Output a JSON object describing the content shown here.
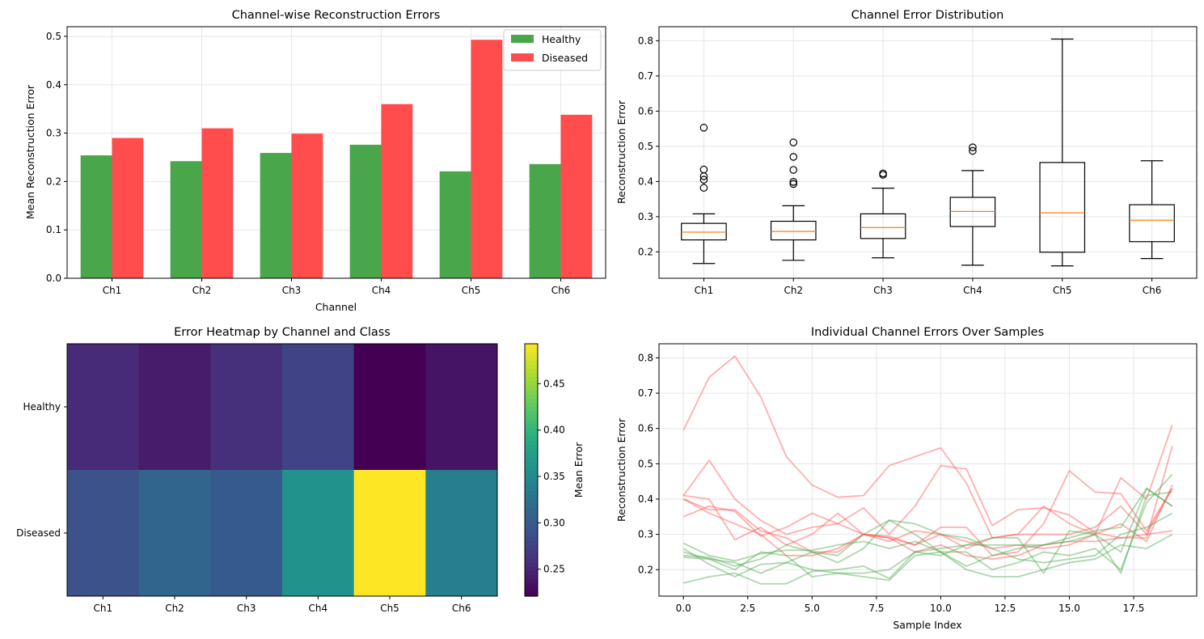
{
  "chart_data": [
    {
      "type": "bar",
      "title": "Channel-wise Reconstruction Errors",
      "xlabel": "Channel",
      "ylabel": "Mean Reconstruction Error",
      "categories": [
        "Ch1",
        "Ch2",
        "Ch3",
        "Ch4",
        "Ch5",
        "Ch6"
      ],
      "ylim": [
        0,
        0.52
      ],
      "yticks": [
        "0.0",
        "0.1",
        "0.2",
        "0.3",
        "0.4",
        "0.5"
      ],
      "grid": true,
      "legend_position": "top-right",
      "series": [
        {
          "name": "Healthy",
          "color": "#4aa64a",
          "values": [
            0.254,
            0.242,
            0.259,
            0.276,
            0.221,
            0.236
          ]
        },
        {
          "name": "Diseased",
          "color": "#ff4d4d",
          "values": [
            0.29,
            0.31,
            0.299,
            0.36,
            0.493,
            0.338
          ]
        }
      ]
    },
    {
      "type": "box",
      "title": "Channel Error Distribution",
      "xlabel": "",
      "ylabel": "Reconstruction Error",
      "categories": [
        "Ch1",
        "Ch2",
        "Ch3",
        "Ch4",
        "Ch5",
        "Ch6"
      ],
      "ylim": [
        0.125,
        0.84
      ],
      "yticks": [
        "0.2",
        "0.3",
        "0.4",
        "0.5",
        "0.6",
        "0.7",
        "0.8"
      ],
      "grid": true,
      "boxes": [
        {
          "whislo": 0.167,
          "q1": 0.234,
          "med": 0.256,
          "q3": 0.281,
          "whishi": 0.308,
          "fliers": [
            0.553,
            0.434,
            0.415,
            0.405,
            0.382
          ]
        },
        {
          "whislo": 0.176,
          "q1": 0.234,
          "med": 0.258,
          "q3": 0.287,
          "whishi": 0.331,
          "fliers": [
            0.511,
            0.47,
            0.433,
            0.399,
            0.393
          ]
        },
        {
          "whislo": 0.183,
          "q1": 0.238,
          "med": 0.269,
          "q3": 0.308,
          "whishi": 0.381,
          "fliers": [
            0.423,
            0.419
          ]
        },
        {
          "whislo": 0.162,
          "q1": 0.272,
          "med": 0.315,
          "q3": 0.355,
          "whishi": 0.431,
          "fliers": [
            0.497,
            0.487
          ]
        },
        {
          "whislo": 0.16,
          "q1": 0.199,
          "med": 0.311,
          "q3": 0.454,
          "whishi": 0.805,
          "fliers": []
        },
        {
          "whislo": 0.181,
          "q1": 0.229,
          "med": 0.29,
          "q3": 0.334,
          "whishi": 0.459,
          "fliers": []
        }
      ]
    },
    {
      "type": "heatmap",
      "title": "Error Heatmap by Channel and Class",
      "xlabel": "",
      "ylabel": "",
      "x_categories": [
        "Ch1",
        "Ch2",
        "Ch3",
        "Ch4",
        "Ch5",
        "Ch6"
      ],
      "y_categories": [
        "Healthy",
        "Diseased"
      ],
      "values": [
        [
          0.254,
          0.242,
          0.259,
          0.276,
          0.221,
          0.236
        ],
        [
          0.29,
          0.31,
          0.299,
          0.36,
          0.493,
          0.338
        ]
      ],
      "colormap": "viridis",
      "colorbar": {
        "label": "Mean Error",
        "range": [
          0.221,
          0.493
        ],
        "ticks": [
          "0.25",
          "0.30",
          "0.35",
          "0.40",
          "0.45"
        ],
        "tick_values": [
          0.25,
          0.3,
          0.35,
          0.4,
          0.45
        ]
      }
    },
    {
      "type": "line",
      "title": "Individual Channel Errors Over Samples",
      "xlabel": "Sample Index",
      "ylabel": "Reconstruction Error",
      "xlim": [
        -0.95,
        19.95
      ],
      "ylim": [
        0.125,
        0.84
      ],
      "xticks": [
        "0.0",
        "2.5",
        "5.0",
        "7.5",
        "10.0",
        "12.5",
        "15.0",
        "17.5"
      ],
      "yticks": [
        "0.2",
        "0.3",
        "0.4",
        "0.5",
        "0.6",
        "0.7",
        "0.8"
      ],
      "grid": true,
      "x": [
        0,
        1,
        2,
        3,
        4,
        5,
        6,
        7,
        8,
        9,
        10,
        11,
        12,
        13,
        14,
        15,
        16,
        17,
        18,
        19
      ],
      "series": [
        {
          "color": "#ff4d4d",
          "values": [
            0.595,
            0.745,
            0.805,
            0.69,
            0.52,
            0.44,
            0.405,
            0.41,
            0.495,
            0.52,
            0.545,
            0.445,
            0.29,
            0.3,
            0.38,
            0.33,
            0.3,
            0.46,
            0.4,
            0.61
          ]
        },
        {
          "color": "#ff4d4d",
          "values": [
            0.41,
            0.51,
            0.4,
            0.34,
            0.3,
            0.32,
            0.33,
            0.375,
            0.3,
            0.38,
            0.495,
            0.485,
            0.325,
            0.37,
            0.375,
            0.355,
            0.305,
            0.29,
            0.29,
            0.55
          ]
        },
        {
          "color": "#ff4d4d",
          "values": [
            0.41,
            0.4,
            0.285,
            0.32,
            0.27,
            0.3,
            0.36,
            0.3,
            0.295,
            0.27,
            0.32,
            0.32,
            0.24,
            0.25,
            0.33,
            0.48,
            0.42,
            0.415,
            0.31,
            0.43
          ]
        },
        {
          "color": "#ff4d4d",
          "values": [
            0.35,
            0.38,
            0.365,
            0.295,
            0.32,
            0.36,
            0.33,
            0.3,
            0.28,
            0.31,
            0.3,
            0.28,
            0.26,
            0.27,
            0.26,
            0.27,
            0.3,
            0.33,
            0.28,
            0.44
          ]
        },
        {
          "color": "#ff4d4d",
          "values": [
            0.4,
            0.36,
            0.33,
            0.3,
            0.24,
            0.24,
            0.26,
            0.3,
            0.29,
            0.25,
            0.27,
            0.24,
            0.23,
            0.24,
            0.27,
            0.28,
            0.28,
            0.29,
            0.3,
            0.31
          ]
        },
        {
          "color": "#ff4d4d",
          "values": [
            0.4,
            0.37,
            0.37,
            0.31,
            0.29,
            0.25,
            0.25,
            0.3,
            0.29,
            0.27,
            0.3,
            0.26,
            0.29,
            0.3,
            0.3,
            0.3,
            0.32,
            0.38,
            0.3,
            0.43
          ]
        },
        {
          "color": "#4aa64a",
          "values": [
            0.275,
            0.24,
            0.225,
            0.245,
            0.255,
            0.255,
            0.27,
            0.28,
            0.26,
            0.28,
            0.25,
            0.21,
            0.24,
            0.26,
            0.27,
            0.29,
            0.31,
            0.32,
            0.43,
            0.38
          ]
        },
        {
          "color": "#4aa64a",
          "values": [
            0.24,
            0.235,
            0.21,
            0.23,
            0.27,
            0.25,
            0.24,
            0.3,
            0.34,
            0.3,
            0.25,
            0.25,
            0.2,
            0.22,
            0.25,
            0.24,
            0.26,
            0.2,
            0.39,
            0.47
          ]
        },
        {
          "color": "#4aa64a",
          "values": [
            0.26,
            0.215,
            0.18,
            0.215,
            0.22,
            0.2,
            0.19,
            0.19,
            0.2,
            0.25,
            0.24,
            0.27,
            0.29,
            0.29,
            0.19,
            0.31,
            0.3,
            0.19,
            0.41,
            0.42
          ]
        },
        {
          "color": "#4aa64a",
          "values": [
            0.162,
            0.18,
            0.19,
            0.16,
            0.16,
            0.195,
            0.2,
            0.21,
            0.175,
            0.25,
            0.26,
            0.27,
            0.27,
            0.27,
            0.27,
            0.28,
            0.3,
            0.25,
            0.43,
            0.38
          ]
        },
        {
          "color": "#4aa64a",
          "values": [
            0.235,
            0.23,
            0.2,
            0.25,
            0.24,
            0.18,
            0.19,
            0.18,
            0.17,
            0.24,
            0.25,
            0.2,
            0.18,
            0.18,
            0.2,
            0.22,
            0.23,
            0.27,
            0.26,
            0.3
          ]
        },
        {
          "color": "#4aa64a",
          "values": [
            0.25,
            0.23,
            0.22,
            0.19,
            0.22,
            0.25,
            0.22,
            0.26,
            0.34,
            0.33,
            0.3,
            0.29,
            0.26,
            0.23,
            0.22,
            0.23,
            0.24,
            0.3,
            0.32,
            0.36
          ]
        }
      ]
    }
  ]
}
